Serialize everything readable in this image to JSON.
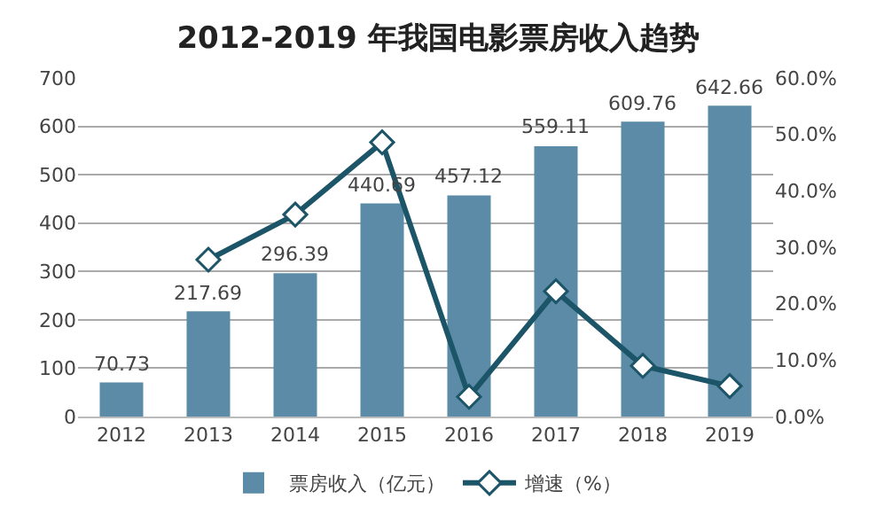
{
  "chart_data": {
    "type": "bar",
    "title": "2012-2019 年我国电影票房收入趋势",
    "categories": [
      "2012",
      "2013",
      "2014",
      "2015",
      "2016",
      "2017",
      "2018",
      "2019"
    ],
    "series": [
      {
        "name": "票房收入（亿元）",
        "color": "#5b8ba6",
        "values": [
          70.73,
          217.69,
          296.39,
          440.69,
          457.12,
          559.11,
          609.76,
          642.66
        ],
        "value_labels": [
          "70.73",
          "217.69",
          "296.39",
          "440.69",
          "457.12",
          "559.11",
          "609.76",
          "642.66"
        ]
      },
      {
        "name": "增速（%）",
        "type": "line",
        "axis": "y2",
        "color": "#1c5468",
        "marker": "diamond",
        "values": [
          null,
          27.8,
          35.8,
          48.6,
          3.5,
          22.2,
          9.0,
          5.4
        ]
      }
    ],
    "ylim": [
      0,
      700
    ],
    "yticks": [
      0,
      100,
      200,
      300,
      400,
      500,
      600,
      700
    ],
    "y2lim": [
      0,
      60
    ],
    "y2ticks": [
      {
        "value": 0,
        "label": "0.0%"
      },
      {
        "value": 10,
        "label": "10.0%"
      },
      {
        "value": 20,
        "label": "20.0%"
      },
      {
        "value": 30,
        "label": "30.0%"
      },
      {
        "value": 40,
        "label": "40.0%"
      },
      {
        "value": 50,
        "label": "50.0%"
      },
      {
        "value": 60,
        "label": "60.0%"
      }
    ],
    "grid": "y",
    "legend": "bottom"
  }
}
